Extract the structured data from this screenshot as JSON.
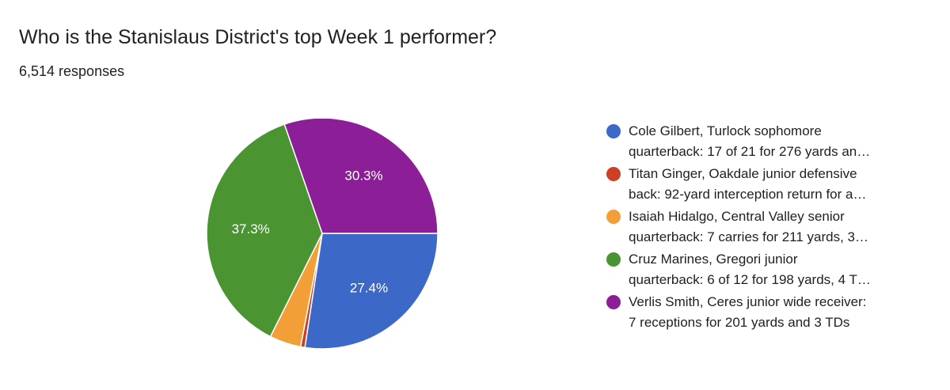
{
  "question": {
    "title": "Who is the Stanislaus District's top Week 1 performer?",
    "responses": "6,514 responses"
  },
  "chart_data": {
    "type": "pie",
    "slices": [
      {
        "label_line1": "Cole Gilbert, Turlock sophomore",
        "label_line2": "quarterback: 17 of 21 for 276 yards an…",
        "value": 27.4,
        "display": "27.4%",
        "color": "#3c68c8"
      },
      {
        "label_line1": "Titan Ginger, Oakdale junior defensive",
        "label_line2": "back: 92-yard interception return for a…",
        "value": 0.6,
        "display": "",
        "color": "#cc4125"
      },
      {
        "label_line1": "Isaiah Hidalgo, Central Valley senior",
        "label_line2": "quarterback: 7 carries for 211 yards, 3…",
        "value": 4.4,
        "display": "",
        "color": "#f19f36"
      },
      {
        "label_line1": "Cruz Marines, Gregori junior",
        "label_line2": "quarterback: 6 of 12 for 198 yards, 4 T…",
        "value": 37.3,
        "display": "37.3%",
        "color": "#4a9431"
      },
      {
        "label_line1": "Verlis Smith, Ceres junior wide receiver:",
        "label_line2": "7 receptions for 201 yards and 3 TDs",
        "value": 30.3,
        "display": "30.3%",
        "color": "#8c1f98"
      }
    ],
    "legend_position": "right"
  }
}
